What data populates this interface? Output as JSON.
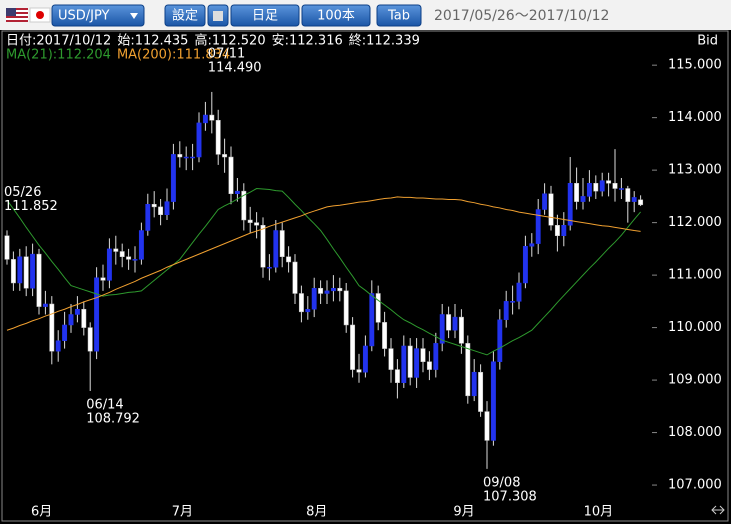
{
  "toolbar": {
    "symbol": "USD/JPY",
    "buttons": [
      "設定",
      "日足",
      "100本",
      "Tab"
    ],
    "range": "2017/05/26～2017/10/12"
  },
  "info": [
    "日付:2017/10/12",
    "始:112.435",
    "高:112.520",
    "安:112.316",
    "終:112.339"
  ],
  "chart_data": {
    "type": "candlestick",
    "price_label": "Bid",
    "up_color": "#2233ee",
    "down_color": "#ffffff",
    "wick_color": "#dddddd",
    "ylim": [
      106.62,
      115.67
    ],
    "yticks": [
      {
        "value": 107,
        "label": "107.000"
      },
      {
        "value": 108,
        "label": "108.000"
      },
      {
        "value": 109,
        "label": "109.000"
      },
      {
        "value": 110,
        "label": "110.000"
      },
      {
        "value": 111,
        "label": "111.000"
      },
      {
        "value": 112,
        "label": "112.000"
      },
      {
        "value": 113,
        "label": "113.000"
      },
      {
        "value": 114,
        "label": "114.000"
      },
      {
        "value": 115,
        "label": "115.000"
      }
    ],
    "categories": [
      null,
      null,
      null,
      null,
      "6月",
      null,
      null,
      null,
      null,
      null,
      null,
      null,
      null,
      null,
      null,
      null,
      null,
      null,
      null,
      null,
      null,
      null,
      null,
      null,
      null,
      null,
      "7月",
      null,
      null,
      null,
      null,
      null,
      null,
      null,
      null,
      null,
      null,
      null,
      null,
      null,
      null,
      null,
      null,
      null,
      null,
      null,
      null,
      "8月",
      null,
      null,
      null,
      null,
      null,
      null,
      null,
      null,
      null,
      null,
      null,
      null,
      null,
      null,
      null,
      null,
      null,
      null,
      null,
      null,
      null,
      null,
      "9月",
      null,
      null,
      null,
      null,
      null,
      null,
      null,
      null,
      null,
      null,
      null,
      null,
      null,
      null,
      null,
      null,
      null,
      null,
      null,
      null,
      "10月",
      null,
      null,
      null,
      null,
      null,
      null,
      null,
      null
    ],
    "open": [
      111.75,
      111.3,
      110.85,
      111.35,
      110.75,
      111.4,
      110.4,
      110.45,
      109.55,
      109.75,
      110.05,
      110.25,
      110.35,
      110.0,
      109.55,
      110.95,
      110.9,
      111.5,
      111.45,
      111.35,
      111.3,
      111.3,
      111.85,
      112.35,
      112.3,
      112.15,
      112.4,
      113.3,
      113.25,
      113.25,
      113.25,
      113.9,
      114.05,
      113.95,
      113.3,
      113.25,
      112.55,
      112.6,
      112.05,
      112.0,
      111.95,
      111.15,
      111.15,
      111.85,
      111.35,
      111.25,
      110.65,
      110.3,
      110.35,
      110.75,
      110.65,
      110.7,
      110.75,
      110.7,
      110.05,
      109.2,
      109.15,
      109.65,
      110.65,
      110.1,
      109.6,
      109.2,
      108.95,
      109.65,
      109.05,
      109.6,
      109.35,
      109.2,
      109.7,
      110.25,
      109.95,
      110.2,
      109.7,
      108.7,
      109.15,
      108.4,
      107.85,
      109.35,
      110.15,
      110.5,
      110.5,
      110.85,
      111.55,
      111.6,
      112.25,
      112.55,
      111.95,
      111.75,
      111.95,
      112.75,
      112.4,
      112.5,
      112.75,
      112.6,
      112.8,
      112.75,
      112.65,
      112.65,
      112.4,
      112.435
    ],
    "high": [
      111.852,
      111.45,
      111.5,
      111.55,
      111.6,
      111.5,
      110.7,
      110.6,
      109.95,
      110.3,
      110.45,
      110.6,
      110.5,
      110.1,
      111.15,
      111.2,
      111.7,
      111.75,
      111.6,
      111.5,
      111.55,
      112.0,
      112.55,
      112.6,
      112.45,
      112.65,
      113.5,
      113.55,
      113.45,
      113.5,
      114.1,
      114.3,
      114.49,
      114.15,
      113.6,
      113.45,
      112.85,
      112.75,
      112.3,
      112.2,
      112.1,
      111.4,
      112.05,
      112.0,
      111.55,
      111.4,
      110.8,
      110.6,
      110.95,
      110.9,
      110.9,
      111.0,
      110.95,
      110.85,
      110.2,
      109.5,
      109.85,
      110.9,
      110.8,
      110.3,
      109.8,
      109.4,
      109.85,
      109.8,
      109.8,
      109.8,
      109.55,
      109.9,
      110.45,
      110.4,
      110.45,
      110.35,
      109.85,
      109.4,
      109.3,
      108.6,
      109.55,
      110.35,
      110.7,
      110.8,
      111.05,
      111.75,
      111.8,
      112.45,
      112.75,
      112.7,
      112.15,
      112.2,
      113.25,
      113.05,
      112.85,
      113.0,
      112.9,
      112.95,
      112.95,
      113.4,
      112.85,
      112.7,
      112.6,
      112.52
    ],
    "low": [
      111.2,
      110.7,
      110.7,
      110.6,
      110.6,
      110.25,
      110.25,
      109.3,
      109.35,
      109.6,
      109.9,
      110.1,
      109.85,
      108.792,
      109.4,
      110.7,
      110.75,
      111.2,
      111.15,
      111.1,
      111.05,
      111.2,
      111.75,
      112.1,
      111.95,
      112.05,
      112.25,
      113.05,
      113.0,
      113.0,
      113.15,
      113.75,
      113.7,
      113.1,
      112.95,
      112.35,
      112.4,
      111.85,
      111.8,
      111.7,
      110.95,
      110.9,
      111.05,
      111.15,
      111.05,
      110.45,
      110.1,
      110.15,
      110.2,
      110.45,
      110.45,
      110.5,
      110.5,
      109.9,
      109.05,
      108.95,
      109.05,
      109.55,
      109.95,
      109.45,
      108.95,
      108.65,
      108.85,
      108.9,
      108.85,
      109.15,
      109.0,
      109.05,
      109.55,
      109.8,
      109.8,
      109.5,
      108.55,
      108.6,
      108.3,
      107.308,
      107.75,
      109.2,
      110.0,
      110.25,
      110.35,
      110.75,
      111.35,
      111.4,
      112.15,
      111.85,
      111.45,
      111.55,
      111.85,
      112.25,
      112.25,
      112.4,
      112.45,
      112.5,
      112.5,
      112.4,
      112.45,
      112.0,
      112.2,
      112.316
    ],
    "close": [
      111.3,
      110.85,
      111.35,
      110.75,
      111.4,
      110.4,
      110.45,
      109.55,
      109.75,
      110.05,
      110.25,
      110.35,
      110.0,
      109.55,
      110.95,
      110.9,
      111.5,
      111.45,
      111.35,
      111.3,
      111.3,
      111.85,
      112.35,
      112.3,
      112.15,
      112.4,
      113.3,
      113.25,
      113.25,
      113.25,
      113.9,
      114.05,
      113.95,
      113.3,
      113.25,
      112.55,
      112.6,
      112.05,
      112.0,
      111.95,
      111.15,
      111.15,
      111.85,
      111.35,
      111.25,
      110.65,
      110.3,
      110.35,
      110.75,
      110.65,
      110.7,
      110.75,
      110.7,
      110.05,
      109.2,
      109.15,
      109.65,
      110.65,
      110.1,
      109.6,
      109.2,
      108.95,
      109.65,
      109.05,
      109.6,
      109.35,
      109.2,
      109.7,
      110.25,
      109.95,
      110.2,
      109.7,
      108.7,
      109.15,
      108.4,
      107.85,
      109.35,
      110.15,
      110.5,
      110.5,
      110.85,
      111.55,
      111.6,
      112.25,
      112.55,
      111.95,
      111.75,
      111.95,
      112.75,
      112.4,
      112.5,
      112.75,
      112.6,
      112.8,
      112.75,
      112.65,
      112.65,
      112.4,
      112.48,
      112.339
    ],
    "series": [
      {
        "name": "MA(21):112.204",
        "color": "#2e9a2e",
        "values": [
          112.43,
          112.26,
          112.09,
          111.91,
          111.74,
          111.57,
          111.42,
          111.26,
          111.11,
          110.95,
          110.8,
          110.76,
          110.72,
          110.68,
          110.64,
          110.6,
          110.62,
          110.63,
          110.65,
          110.67,
          110.68,
          110.7,
          110.8,
          110.9,
          111.0,
          111.1,
          111.2,
          111.3,
          111.46,
          111.62,
          111.78,
          111.93,
          112.09,
          112.25,
          112.32,
          112.38,
          112.45,
          112.52,
          112.58,
          112.65,
          112.64,
          112.63,
          112.61,
          112.6,
          112.48,
          112.35,
          112.23,
          112.1,
          111.98,
          111.85,
          111.68,
          111.5,
          111.33,
          111.15,
          110.98,
          110.8,
          110.71,
          110.61,
          110.52,
          110.43,
          110.34,
          110.24,
          110.15,
          110.09,
          110.02,
          109.96,
          109.89,
          109.83,
          109.76,
          109.72,
          109.68,
          109.64,
          109.6,
          109.56,
          109.52,
          109.48,
          109.55,
          109.61,
          109.68,
          109.75,
          109.81,
          109.88,
          109.95,
          110.08,
          110.21,
          110.34,
          110.48,
          110.61,
          110.74,
          110.87,
          111.0,
          111.13,
          111.25,
          111.38,
          111.51,
          111.63,
          111.76,
          111.91,
          112.06,
          112.204
        ]
      },
      {
        "name": "MA(200):111.834",
        "color": "#f0a030",
        "values": [
          109.95,
          109.99,
          110.04,
          110.08,
          110.13,
          110.17,
          110.22,
          110.26,
          110.31,
          110.35,
          110.4,
          110.44,
          110.49,
          110.53,
          110.57,
          110.62,
          110.67,
          110.73,
          110.78,
          110.83,
          110.88,
          110.94,
          110.99,
          111.04,
          111.09,
          111.15,
          111.2,
          111.25,
          111.3,
          111.35,
          111.4,
          111.45,
          111.5,
          111.55,
          111.6,
          111.65,
          111.7,
          111.75,
          111.8,
          111.84,
          111.88,
          111.93,
          111.97,
          112.01,
          112.05,
          112.09,
          112.13,
          112.18,
          112.22,
          112.26,
          112.3,
          112.32,
          112.33,
          112.35,
          112.37,
          112.39,
          112.4,
          112.42,
          112.44,
          112.46,
          112.47,
          112.49,
          112.48,
          112.48,
          112.47,
          112.47,
          112.46,
          112.45,
          112.45,
          112.44,
          112.44,
          112.43,
          112.4,
          112.38,
          112.35,
          112.33,
          112.3,
          112.28,
          112.25,
          112.23,
          112.2,
          112.18,
          112.16,
          112.14,
          112.12,
          112.1,
          112.08,
          112.06,
          112.04,
          112.02,
          112.0,
          111.98,
          111.96,
          111.94,
          111.93,
          111.91,
          111.89,
          111.87,
          111.85,
          111.834
        ]
      }
    ],
    "annotations": [
      {
        "date": "05/26",
        "label": "111.852"
      },
      {
        "date": "07/11",
        "label": "114.490"
      },
      {
        "date": "06/14",
        "label": "108.792"
      },
      {
        "date": "09/08",
        "label": "107.308"
      }
    ]
  }
}
